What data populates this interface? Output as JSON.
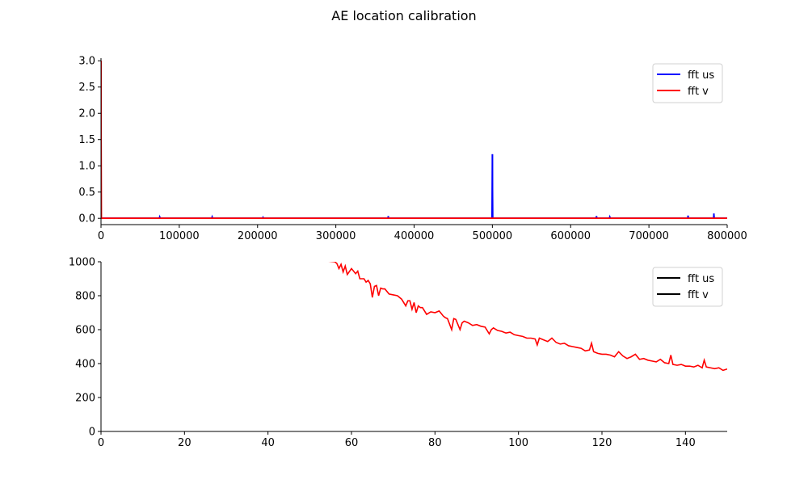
{
  "figure": {
    "title": "AE location calibration"
  },
  "chart_data": [
    {
      "type": "line",
      "xlim": [
        0,
        800000
      ],
      "ylim": [
        -0.12,
        3.05
      ],
      "xticks": [
        0,
        100000,
        200000,
        300000,
        400000,
        500000,
        600000,
        700000,
        800000
      ],
      "yticks": [
        0.0,
        0.5,
        1.0,
        1.5,
        2.0,
        2.5,
        3.0
      ],
      "grid": false,
      "legend": {
        "location": "top-right",
        "entries": [
          {
            "label": "fft us",
            "color": "#0000ff"
          },
          {
            "label": "fft v",
            "color": "#ff0000"
          }
        ]
      },
      "series": [
        {
          "color": "#0000ff",
          "baseline": 0.0,
          "spikes": [
            [
              0,
              0.02
            ],
            [
              75000,
              0.03
            ],
            [
              142000,
              0.03
            ],
            [
              207000,
              0.02
            ],
            [
              367000,
              0.04
            ],
            [
              500000,
              1.22
            ],
            [
              633000,
              0.04
            ],
            [
              650000,
              0.03
            ],
            [
              750000,
              0.05
            ],
            [
              783000,
              0.09
            ]
          ]
        },
        {
          "color": "#ff0000",
          "baseline": 0.0,
          "spikes": [
            [
              0,
              3.0
            ]
          ]
        }
      ]
    },
    {
      "type": "line",
      "xlim": [
        0,
        150
      ],
      "ylim": [
        0,
        1000
      ],
      "xticks": [
        0,
        20,
        40,
        60,
        80,
        100,
        120,
        140
      ],
      "yticks": [
        0,
        200,
        400,
        600,
        800,
        1000
      ],
      "grid": false,
      "legend": {
        "location": "top-right",
        "entries": [
          {
            "label": "fft us",
            "color": "#000000"
          },
          {
            "label": "fft v",
            "color": "#000000"
          }
        ]
      },
      "series": [
        {
          "color": "#ff0000",
          "points": [
            [
              54,
              1005
            ],
            [
              56,
              1000
            ],
            [
              56.5,
              990
            ],
            [
              57,
              960
            ],
            [
              57.5,
              985
            ],
            [
              58,
              940
            ],
            [
              58.5,
              975
            ],
            [
              59,
              925
            ],
            [
              60,
              960
            ],
            [
              61,
              930
            ],
            [
              61.5,
              945
            ],
            [
              62,
              900
            ],
            [
              63,
              900
            ],
            [
              63.5,
              880
            ],
            [
              64,
              890
            ],
            [
              64.5,
              870
            ],
            [
              65,
              790
            ],
            [
              65.5,
              855
            ],
            [
              66,
              860
            ],
            [
              66.5,
              800
            ],
            [
              67,
              845
            ],
            [
              67.5,
              840
            ],
            [
              68,
              840
            ],
            [
              69,
              810
            ],
            [
              70,
              805
            ],
            [
              71,
              800
            ],
            [
              72,
              780
            ],
            [
              73,
              740
            ],
            [
              73.5,
              770
            ],
            [
              74,
              770
            ],
            [
              74.5,
              720
            ],
            [
              75,
              760
            ],
            [
              75.5,
              700
            ],
            [
              76,
              740
            ],
            [
              76.5,
              730
            ],
            [
              77,
              730
            ],
            [
              78,
              690
            ],
            [
              79,
              705
            ],
            [
              80,
              700
            ],
            [
              81,
              710
            ],
            [
              82,
              680
            ],
            [
              82.5,
              670
            ],
            [
              83,
              665
            ],
            [
              84,
              600
            ],
            [
              84.5,
              665
            ],
            [
              85,
              660
            ],
            [
              86,
              600
            ],
            [
              86.5,
              640
            ],
            [
              87,
              650
            ],
            [
              88,
              640
            ],
            [
              89,
              625
            ],
            [
              90,
              630
            ],
            [
              91,
              620
            ],
            [
              92,
              615
            ],
            [
              93,
              575
            ],
            [
              93.5,
              600
            ],
            [
              94,
              610
            ],
            [
              95,
              595
            ],
            [
              96,
              590
            ],
            [
              97,
              580
            ],
            [
              98,
              585
            ],
            [
              99,
              570
            ],
            [
              100,
              565
            ],
            [
              101,
              560
            ],
            [
              102,
              550
            ],
            [
              103,
              550
            ],
            [
              104,
              545
            ],
            [
              104.5,
              510
            ],
            [
              105,
              550
            ],
            [
              106,
              540
            ],
            [
              107,
              530
            ],
            [
              108,
              550
            ],
            [
              109,
              525
            ],
            [
              110,
              515
            ],
            [
              111,
              520
            ],
            [
              112,
              505
            ],
            [
              113,
              500
            ],
            [
              114,
              495
            ],
            [
              115,
              490
            ],
            [
              116,
              475
            ],
            [
              117,
              480
            ],
            [
              117.5,
              520
            ],
            [
              118,
              470
            ],
            [
              119,
              460
            ],
            [
              120,
              455
            ],
            [
              121,
              455
            ],
            [
              122,
              450
            ],
            [
              123,
              440
            ],
            [
              124,
              470
            ],
            [
              125,
              445
            ],
            [
              126,
              430
            ],
            [
              127,
              440
            ],
            [
              128,
              455
            ],
            [
              129,
              425
            ],
            [
              130,
              430
            ],
            [
              131,
              420
            ],
            [
              132,
              415
            ],
            [
              133,
              410
            ],
            [
              134,
              425
            ],
            [
              135,
              405
            ],
            [
              136,
              400
            ],
            [
              136.5,
              450
            ],
            [
              137,
              395
            ],
            [
              138,
              390
            ],
            [
              139,
              395
            ],
            [
              140,
              385
            ],
            [
              141,
              385
            ],
            [
              142,
              380
            ],
            [
              143,
              390
            ],
            [
              144,
              375
            ],
            [
              144.5,
              420
            ],
            [
              145,
              380
            ],
            [
              146,
              375
            ],
            [
              147,
              370
            ],
            [
              148,
              375
            ],
            [
              149,
              360
            ],
            [
              150,
              368
            ]
          ]
        }
      ]
    }
  ]
}
